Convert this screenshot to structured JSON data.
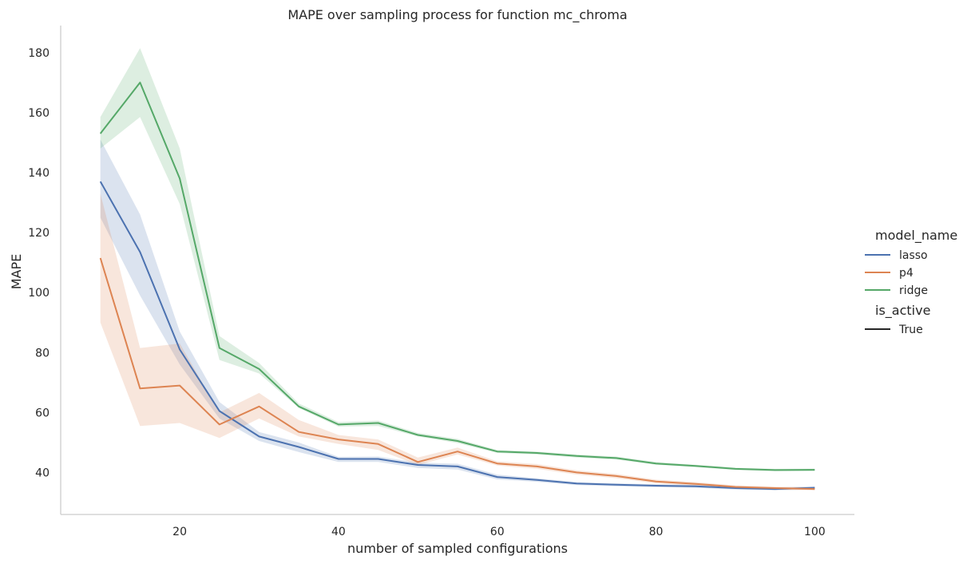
{
  "chart_data": {
    "type": "line",
    "title": "MAPE over sampling process for function mc_chroma",
    "xlabel": "number of sampled configurations",
    "ylabel": "MAPE",
    "xlim": [
      5,
      105
    ],
    "ylim": [
      26,
      189
    ],
    "xticks": [
      20,
      40,
      60,
      80,
      100
    ],
    "yticks": [
      40,
      60,
      80,
      100,
      120,
      140,
      160,
      180
    ],
    "grid": false,
    "legend_placement": "center-right",
    "legend": {
      "hue_title": "model_name",
      "style_title": "is_active",
      "style_entries": [
        "True"
      ]
    },
    "x": [
      10,
      15,
      20,
      25,
      30,
      35,
      40,
      45,
      50,
      55,
      60,
      65,
      70,
      75,
      80,
      85,
      90,
      95,
      100
    ],
    "series": [
      {
        "name": "lasso",
        "color": "#4c72b0",
        "values": [
          137,
          113.5,
          81,
          60.5,
          52,
          48.5,
          44.5,
          44.5,
          42.5,
          42,
          38.5,
          37.5,
          36.3,
          35.9,
          35.6,
          35.4,
          34.8,
          34.5,
          34.9
        ],
        "lower": [
          125,
          99,
          76,
          58,
          50.5,
          46.8,
          43.5,
          43.5,
          41.5,
          41,
          37.7,
          36.9,
          35.8,
          35.4,
          35.1,
          34.9,
          34.3,
          34.0,
          34.4
        ],
        "upper": [
          151,
          126,
          87,
          63.5,
          53.5,
          50,
          45.2,
          45.3,
          43.3,
          42.9,
          39.3,
          38.1,
          36.8,
          36.4,
          36.1,
          35.9,
          35.3,
          35.0,
          35.4
        ]
      },
      {
        "name": "p4",
        "color": "#dd8452",
        "values": [
          111.5,
          68,
          69,
          56,
          62,
          53.5,
          51,
          49.5,
          43.5,
          47,
          43,
          42,
          40,
          38.8,
          37,
          36.2,
          35.2,
          34.8,
          34.5
        ],
        "lower": [
          90,
          55.5,
          56.5,
          51.5,
          58,
          52,
          49.5,
          47.5,
          42.5,
          46,
          42.3,
          41.2,
          39.3,
          38.1,
          36.4,
          35.6,
          34.7,
          34.3,
          34.0
        ],
        "upper": [
          133,
          81.5,
          83,
          60,
          66.5,
          57.5,
          52.5,
          51,
          45,
          48.3,
          43.7,
          42.8,
          40.7,
          39.5,
          37.6,
          36.8,
          35.7,
          35.3,
          35.0
        ]
      },
      {
        "name": "ridge",
        "color": "#55a868",
        "values": [
          153,
          170,
          138,
          81.5,
          74.5,
          62,
          56,
          56.5,
          52.5,
          50.5,
          47,
          46.5,
          45.5,
          44.8,
          43,
          42.2,
          41.2,
          40.8,
          40.9
        ],
        "lower": [
          148,
          158.5,
          129.5,
          77.5,
          73,
          61.5,
          55.3,
          55.5,
          52,
          49.8,
          46.5,
          46,
          45,
          44.3,
          42.6,
          41.8,
          40.8,
          40.4,
          40.5
        ],
        "upper": [
          158.5,
          181.5,
          148,
          85.5,
          76.5,
          63,
          56.8,
          57.3,
          53.2,
          51.2,
          47.5,
          47,
          46,
          45.3,
          43.5,
          42.6,
          41.6,
          41.2,
          41.3
        ]
      }
    ]
  }
}
